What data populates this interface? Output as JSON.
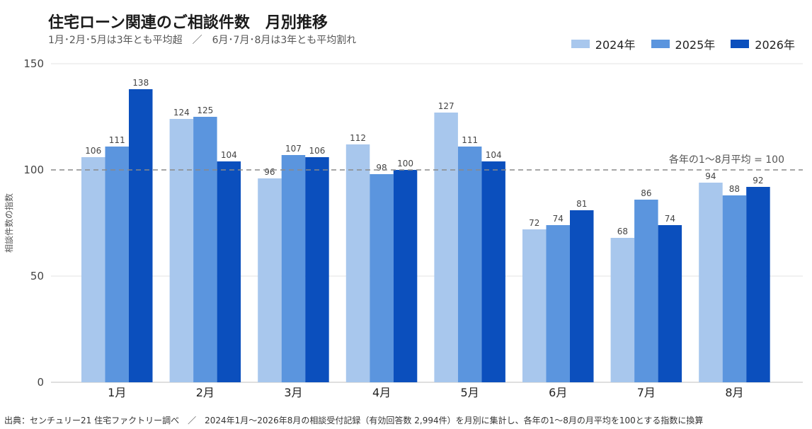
{
  "header": {
    "title": "住宅ローン関連のご相談件数　月別推移",
    "subtitle": "1月･2月･5月は3年とも平均超　／　6月･7月･8月は3年とも平均割れ"
  },
  "footer": {
    "note": "出典：センチュリー21 住宅ファクトリー調べ　／　2024年1月～2026年8月の相談受付記録（有効回答数 2,994件）を月別に集計し、各年の1～8月の月平均を100とする指数に換算"
  },
  "chart_data": {
    "type": "bar",
    "categories": [
      "1月",
      "2月",
      "3月",
      "4月",
      "5月",
      "6月",
      "7月",
      "8月"
    ],
    "series": [
      {
        "name": "2024年",
        "color": "#a8c7ed",
        "values": [
          106,
          124,
          96,
          112,
          127,
          72,
          68,
          94
        ]
      },
      {
        "name": "2025年",
        "color": "#5b95de",
        "values": [
          111,
          125,
          107,
          98,
          111,
          74,
          86,
          88
        ]
      },
      {
        "name": "2026年",
        "color": "#0b4fbd",
        "values": [
          138,
          104,
          106,
          100,
          104,
          81,
          74,
          92
        ]
      }
    ],
    "ylabel": "相談件数の指数",
    "ylim": [
      0,
      150
    ],
    "yticks": [
      0,
      50,
      100,
      150
    ],
    "grid": true,
    "legend": "top-right",
    "reference_line": {
      "value": 100,
      "label": "各年の1～8月平均 = 100",
      "color": "#8a8a8a"
    }
  }
}
